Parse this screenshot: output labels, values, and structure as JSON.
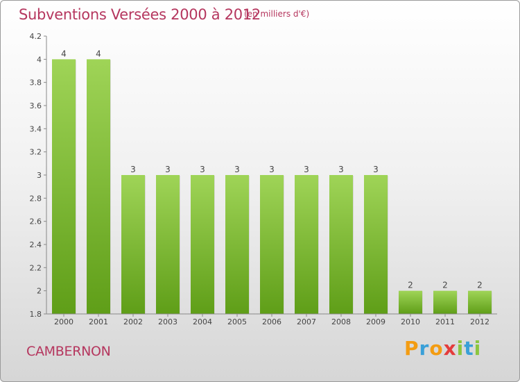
{
  "header": {
    "title": "Subventions Versées 2000 à 2012",
    "subtitle": "(en milliers d'€)"
  },
  "footer": {
    "town": "CAMBERNON",
    "logo": "Proxiti"
  },
  "colors": {
    "accent_text": "#b5365e",
    "bar_light": "#9fd457",
    "bar_dark": "#5f9e18",
    "axis": "#888888"
  },
  "chart_data": {
    "type": "bar",
    "title": "Subventions Versées 2000 à 2012",
    "subtitle": "(en milliers d'€)",
    "xlabel": "",
    "ylabel": "",
    "categories": [
      "2000",
      "2001",
      "2002",
      "2003",
      "2004",
      "2005",
      "2006",
      "2007",
      "2008",
      "2009",
      "2010",
      "2011",
      "2012"
    ],
    "values": [
      4,
      4,
      3,
      3,
      3,
      3,
      3,
      3,
      3,
      3,
      2,
      2,
      2
    ],
    "ylim": [
      1.8,
      4.2
    ],
    "yticks": [
      "1.8",
      "2",
      "2.2",
      "2.4",
      "2.6",
      "2.8",
      "3",
      "3.2",
      "3.4",
      "3.6",
      "3.8",
      "4",
      "4.2"
    ],
    "grid": false,
    "legend": "none"
  }
}
